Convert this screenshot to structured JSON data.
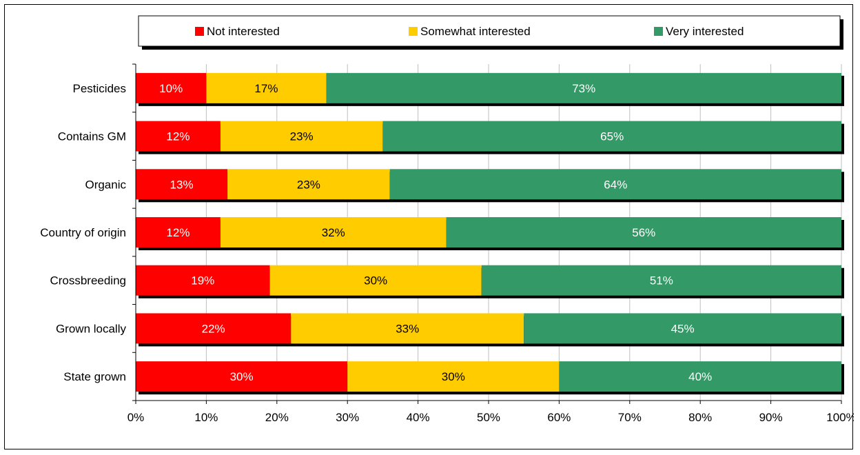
{
  "chart_data": {
    "type": "bar",
    "orientation": "horizontal",
    "stacked": true,
    "title": "",
    "xlabel": "",
    "ylabel": "",
    "xlim": [
      0,
      100
    ],
    "x_ticks": [
      "0%",
      "10%",
      "20%",
      "30%",
      "40%",
      "50%",
      "60%",
      "70%",
      "80%",
      "90%",
      "100%"
    ],
    "categories": [
      "Pesticides",
      "Contains GM",
      "Organic",
      "Country of origin",
      "Crossbreeding",
      "Grown locally",
      "State grown"
    ],
    "series": [
      {
        "name": "Not interested",
        "color": "#ff0000",
        "label_color": "#ffffff",
        "values": [
          10,
          12,
          13,
          12,
          19,
          22,
          30
        ]
      },
      {
        "name": "Somewhat interested",
        "color": "#ffcc00",
        "label_color": "#000000",
        "values": [
          17,
          23,
          23,
          32,
          30,
          33,
          30
        ]
      },
      {
        "name": "Very interested",
        "color": "#339966",
        "label_color": "#ffffff",
        "values": [
          73,
          65,
          64,
          56,
          51,
          45,
          40
        ]
      }
    ],
    "value_suffix": "%",
    "grid": true,
    "legend_position": "top"
  }
}
